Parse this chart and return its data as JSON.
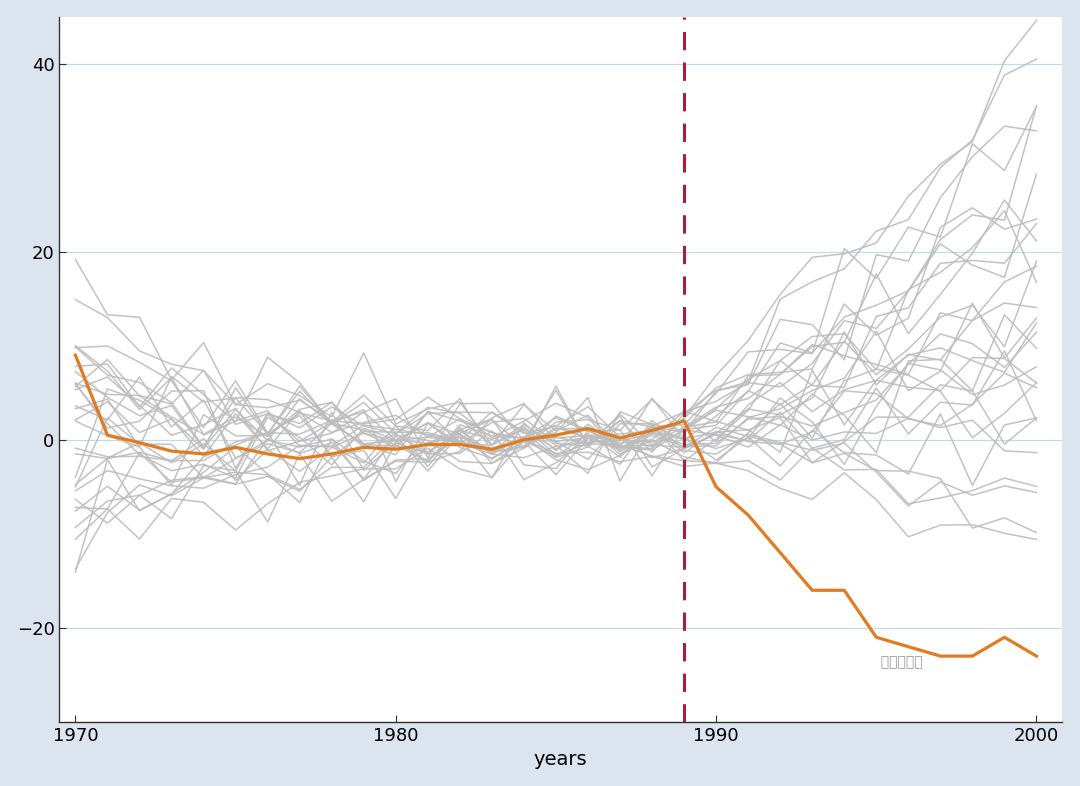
{
  "title": "",
  "xlabel": "years",
  "ylabel": "",
  "xlim": [
    1969.5,
    2000.8
  ],
  "ylim": [
    -30,
    45
  ],
  "yticks": [
    -20,
    0,
    20,
    40
  ],
  "xticks": [
    1970,
    1980,
    1990,
    2000
  ],
  "xticklabels": [
    "1970",
    "1980",
    "1990",
    "2000"
  ],
  "treatment_year": 1989,
  "background_color": "#dce5ef",
  "plot_bg_color": "#ffffff",
  "orange_color": "#e07b20",
  "gray_color": "#bcbcbc",
  "dashed_line_color": "#a0233a",
  "seed": 12,
  "n_controls": 29,
  "n_years": 31,
  "start_year": 1970,
  "orange_pre": [
    9,
    0.5,
    -0.3,
    -1.2,
    -1.5,
    -0.8,
    -1.5,
    -2.0,
    -1.5,
    -0.8,
    -1.0,
    -0.5,
    -0.5,
    -1.0,
    0.0,
    0.5,
    1.2,
    0.2,
    1.0,
    2.0
  ],
  "orange_post": [
    -5,
    -8,
    -12,
    -16,
    -16,
    -21,
    -22,
    -23,
    -23,
    -21,
    -23
  ]
}
